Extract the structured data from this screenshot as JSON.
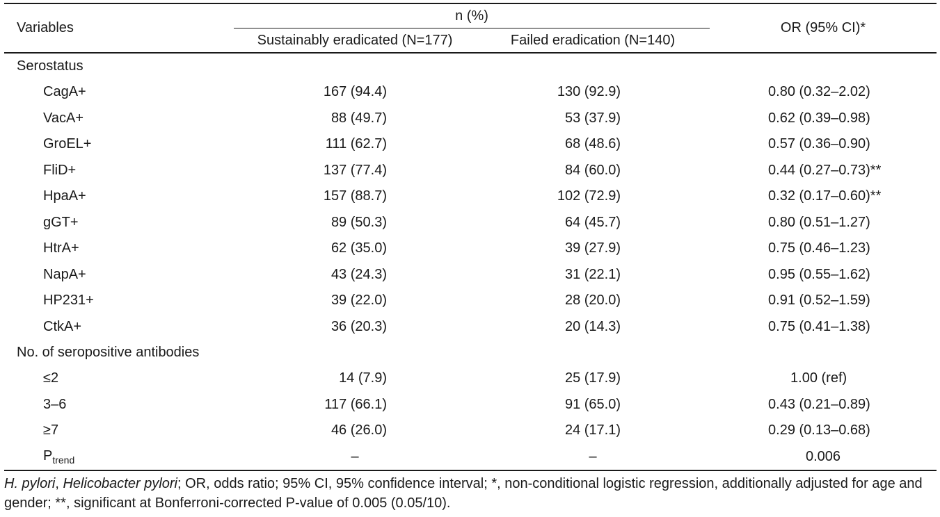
{
  "header": {
    "variables": "Variables",
    "n_pct": "n (%)",
    "col_a": "Sustainably eradicated (N=177)",
    "col_b": "Failed eradication (N=140)",
    "or": "OR (95% CI)*"
  },
  "groups": [
    {
      "label": "Serostatus",
      "rows": [
        {
          "name": "CagA+",
          "a": "167 (94.4)",
          "b": "130 (92.9)",
          "or": "0.80 (0.32–2.02)"
        },
        {
          "name": "VacA+",
          "a": "88 (49.7)",
          "b": "53 (37.9)",
          "or": "0.62 (0.39–0.98)"
        },
        {
          "name": "GroEL+",
          "a": "111 (62.7)",
          "b": "68 (48.6)",
          "or": "0.57 (0.36–0.90)"
        },
        {
          "name": "FliD+",
          "a": "137 (77.4)",
          "b": "84 (60.0)",
          "or": "0.44 (0.27–0.73)**"
        },
        {
          "name": "HpaA+",
          "a": "157 (88.7)",
          "b": "102 (72.9)",
          "or": "0.32 (0.17–0.60)**"
        },
        {
          "name": "gGT+",
          "a": "89 (50.3)",
          "b": "64 (45.7)",
          "or": "0.80 (0.51–1.27)"
        },
        {
          "name": "HtrA+",
          "a": "62 (35.0)",
          "b": "39 (27.9)",
          "or": "0.75 (0.46–1.23)"
        },
        {
          "name": "NapA+",
          "a": "43 (24.3)",
          "b": "31 (22.1)",
          "or": "0.95 (0.55–1.62)"
        },
        {
          "name": "HP231+",
          "a": "39 (22.0)",
          "b": "28 (20.0)",
          "or": "0.91 (0.52–1.59)"
        },
        {
          "name": "CtkA+",
          "a": "36 (20.3)",
          "b": "20 (14.3)",
          "or": "0.75 (0.41–1.38)"
        }
      ]
    },
    {
      "label": "No. of seropositive antibodies",
      "rows": [
        {
          "name": "≤2",
          "a": "14 (7.9)",
          "b": "25 (17.9)",
          "or": "1.00 (ref)"
        },
        {
          "name": "3–6",
          "a": "117 (66.1)",
          "b": "91 (65.0)",
          "or": "0.43 (0.21–0.89)"
        },
        {
          "name": "≥7",
          "a": "46 (26.0)",
          "b": "24 (17.1)",
          "or": "0.29 (0.13–0.68)"
        }
      ]
    }
  ],
  "ptrend": {
    "p": "P",
    "sub": "trend",
    "a": "–",
    "b": "–",
    "or": "0.006"
  },
  "footnote": {
    "hp_italic": "H. pylori",
    "sep1": ", ",
    "hp_full_italic": "Helicobacter pylori",
    "rest": "; OR, odds ratio; 95% CI, 95% confidence interval; *, non-conditional logistic regression, additionally adjusted for age and gender; **, significant at Bonferroni-corrected P-value of 0.005 (0.05/10)."
  }
}
